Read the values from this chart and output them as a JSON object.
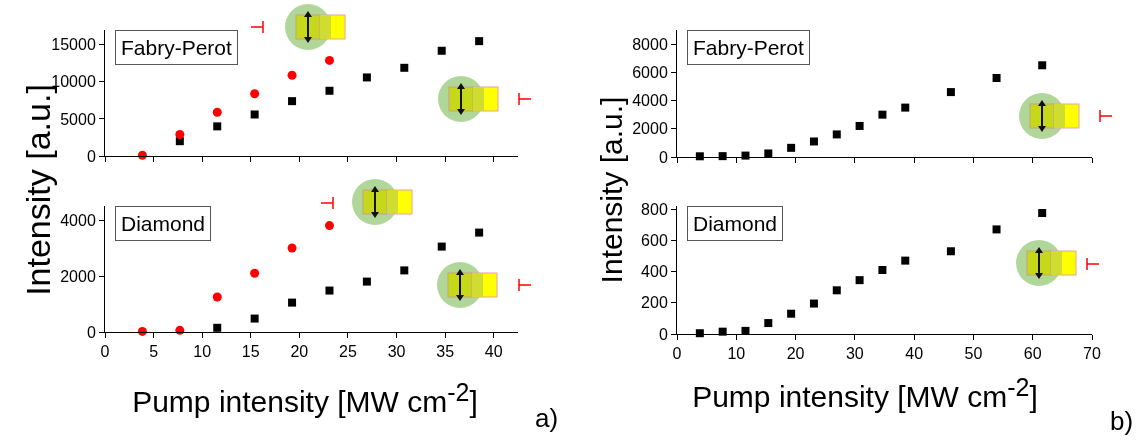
{
  "chart_data": [
    {
      "type": "scatter",
      "ylabel": "Intensity [a.u.]",
      "annotations": [
        "Fabry-Perot"
      ],
      "xlim": [
        0,
        42.5
      ],
      "xticks": [
        0,
        5,
        10,
        15,
        20,
        25,
        30,
        35,
        40
      ],
      "ylim": [
        0,
        17000
      ],
      "yticks": [
        0,
        5000,
        10000,
        15000
      ],
      "tick_labels": "y",
      "series": [
        {
          "color": "#000000",
          "marker": "square",
          "x": [
            7.7,
            11.55,
            15.4,
            19.25,
            23.1,
            26.95,
            30.8,
            34.65,
            38.5
          ],
          "values": [
            2000,
            4000,
            5600,
            7400,
            8800,
            10600,
            11900,
            14200,
            15500
          ]
        },
        {
          "color": "#ff0000",
          "marker": "circle",
          "x": [
            3.85,
            7.7,
            11.55,
            15.4,
            19.25,
            23.1
          ],
          "values": [
            100,
            2900,
            5900,
            8400,
            10900,
            12900
          ]
        }
      ]
    },
    {
      "type": "scatter",
      "xlabel": "Pump intensity [MW cm$^{-2}$]",
      "annotations": [
        "Diamond",
        "a)"
      ],
      "xlim": [
        0,
        42.5
      ],
      "xticks": [
        0,
        5,
        10,
        15,
        20,
        25,
        30,
        35,
        40
      ],
      "ylim": [
        0,
        4500
      ],
      "yticks": [
        0,
        2000,
        4000
      ],
      "series": [
        {
          "color": "#000000",
          "marker": "square",
          "x": [
            11.55,
            15.4,
            19.25,
            23.1,
            26.95,
            30.8,
            34.65,
            38.5
          ],
          "values": [
            150,
            480,
            1050,
            1480,
            1800,
            2200,
            3050,
            3550
          ]
        },
        {
          "color": "#ff0000",
          "marker": "circle",
          "x": [
            3.85,
            7.7,
            11.55,
            15.4,
            19.25,
            23.1
          ],
          "values": [
            20,
            60,
            1250,
            2100,
            3000,
            3800
          ]
        }
      ]
    },
    {
      "type": "scatter",
      "ylabel": "Intensity [a.u.]",
      "annotations": [
        "Fabry-Perot"
      ],
      "xlim": [
        0,
        70
      ],
      "xticks": [
        0,
        10,
        20,
        30,
        40,
        50,
        60,
        70
      ],
      "ylim": [
        0,
        9000
      ],
      "yticks": [
        0,
        2000,
        4000,
        6000,
        8000
      ],
      "tick_labels": "y",
      "series": [
        {
          "color": "#000000",
          "marker": "square",
          "x": [
            3.85,
            7.7,
            11.55,
            15.4,
            19.25,
            23.1,
            26.95,
            30.8,
            34.65,
            38.5,
            46.2,
            53.9,
            61.6
          ],
          "values": [
            50,
            60,
            100,
            250,
            650,
            1100,
            1600,
            2200,
            3000,
            3500,
            4600,
            5600,
            6500
          ]
        }
      ]
    },
    {
      "type": "scatter",
      "xlabel": "Pump intensity [MW cm$^{-2}$]",
      "annotations": [
        "Diamond",
        "b)"
      ],
      "xlim": [
        0,
        70
      ],
      "xticks": [
        0,
        10,
        20,
        30,
        40,
        50,
        60,
        70
      ],
      "ylim": [
        0,
        820
      ],
      "yticks": [
        0,
        200,
        400,
        600,
        800
      ],
      "series": [
        {
          "color": "#000000",
          "marker": "square",
          "x": [
            3.85,
            7.7,
            11.55,
            15.4,
            19.25,
            23.1,
            26.95,
            30.8,
            34.65,
            38.5,
            46.2,
            53.9,
            61.6
          ],
          "values": [
            5,
            15,
            20,
            70,
            130,
            195,
            280,
            345,
            410,
            470,
            530,
            670,
            775
          ]
        }
      ]
    }
  ]
}
